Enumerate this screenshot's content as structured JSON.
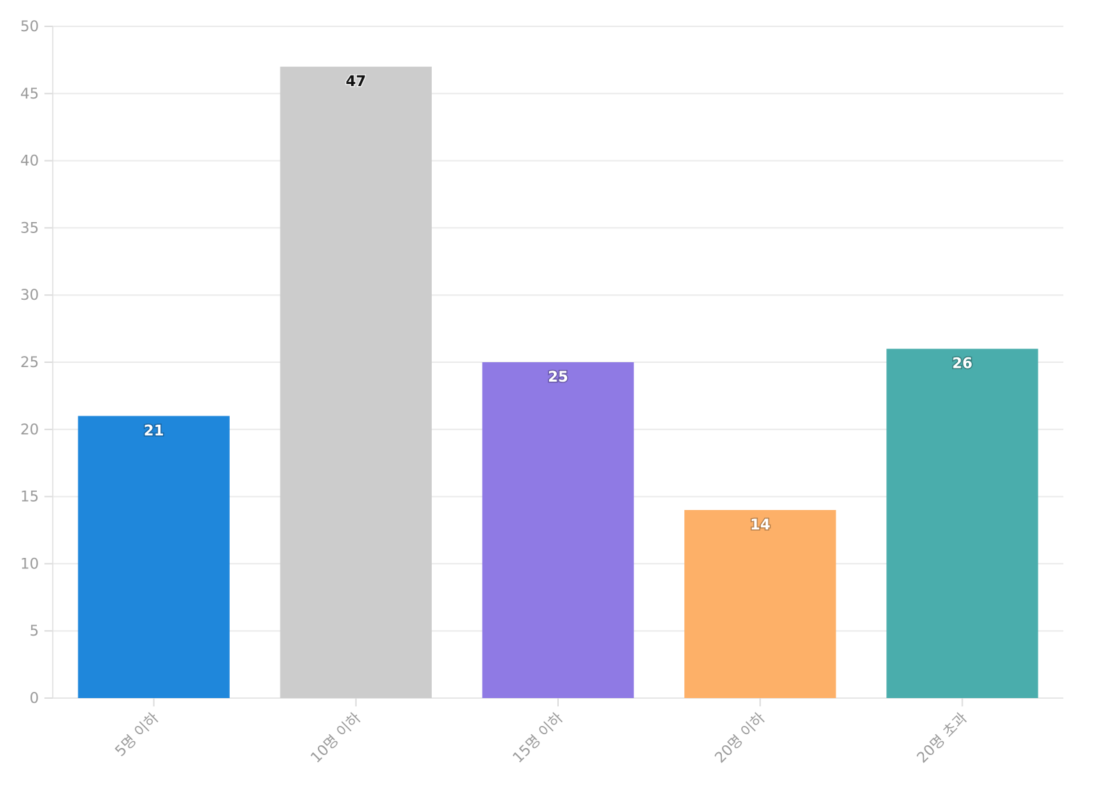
{
  "chart_data": {
    "type": "bar",
    "title": "",
    "xlabel": "",
    "ylabel": "",
    "categories": [
      "5명 이하",
      "10명 이하",
      "15명 이하",
      "20명 이하",
      "20명 초과"
    ],
    "values": [
      21,
      47,
      25,
      14,
      26
    ],
    "data_labels": [
      "21",
      "47",
      "25",
      "14",
      "26"
    ],
    "bar_colors": [
      "#1f87db",
      "#cccccc",
      "#8f7ae4",
      "#fdb068",
      "#4aadac"
    ],
    "label_styles": [
      "light",
      "dark",
      "light",
      "light",
      "light"
    ],
    "ylim": [
      0,
      50
    ],
    "yticks": [
      0,
      5,
      10,
      15,
      20,
      25,
      30,
      35,
      40,
      45,
      50
    ],
    "ytick_labels": [
      "0",
      "5",
      "10",
      "15",
      "20",
      "25",
      "30",
      "35",
      "40",
      "45",
      "50"
    ],
    "grid": true,
    "legend": "none"
  }
}
